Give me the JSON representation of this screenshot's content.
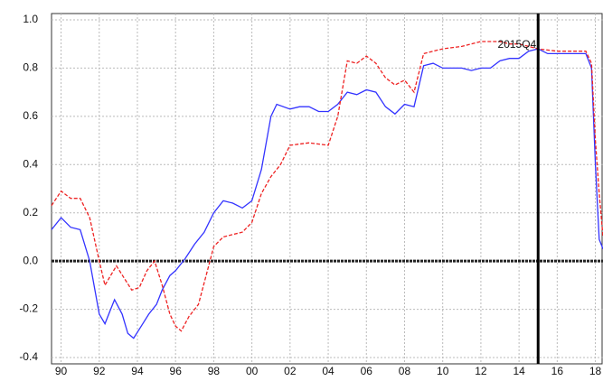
{
  "chart_data": {
    "type": "line",
    "x_blue": [
      1989.5,
      1990,
      1990.5,
      1991,
      1991.5,
      1992,
      1992.3,
      1992.6,
      1992.8,
      1993.2,
      1993.5,
      1993.8,
      1994.2,
      1994.6,
      1995,
      1995.3,
      1995.7,
      1996,
      1996.5,
      1997,
      1997.5,
      1998,
      1998.5,
      1999,
      1999.5,
      2000,
      2000.5,
      2001,
      2001.3,
      2002,
      2002.5,
      2003,
      2003.5,
      2004,
      2004.5,
      2005,
      2005.5,
      2006,
      2006.5,
      2007,
      2007.5,
      2008,
      2008.5,
      2009,
      2009.5,
      2010,
      2011,
      2011.5,
      2012,
      2012.5,
      2013,
      2013.5,
      2014,
      2014.5,
      2015,
      2015.5,
      2016,
      2017,
      2017.5,
      2017.8,
      2018,
      2018.2,
      2018.4
    ],
    "x_red": [
      1989.5,
      1990,
      1990.5,
      1991,
      1991.5,
      1992,
      1992.3,
      1992.6,
      1992.9,
      1993.3,
      1993.7,
      1994.1,
      1994.5,
      1994.9,
      1995.3,
      1995.7,
      1996,
      1996.3,
      1996.7,
      1997.2,
      1997.6,
      1998,
      1998.5,
      1999.5,
      2000,
      2000.5,
      2001,
      2001.5,
      2002,
      2003,
      2004,
      2004.5,
      2005,
      2005.5,
      2006,
      2006.5,
      2007,
      2007.5,
      2008,
      2008.5,
      2009,
      2009.5,
      2010,
      2011,
      2011.5,
      2012,
      2013,
      2013.5,
      2014,
      2015,
      2016,
      2017,
      2017.5,
      2017.8,
      2018,
      2018.2,
      2018.4
    ],
    "series": [
      {
        "color": "#3333ff",
        "style": "solid",
        "x_key": "x_blue",
        "values": [
          0.13,
          0.18,
          0.14,
          0.13,
          0.0,
          -0.22,
          -0.26,
          -0.2,
          -0.16,
          -0.22,
          -0.3,
          -0.32,
          -0.27,
          -0.22,
          -0.18,
          -0.12,
          -0.06,
          -0.04,
          0.01,
          0.07,
          0.12,
          0.2,
          0.25,
          0.24,
          0.22,
          0.25,
          0.38,
          0.6,
          0.65,
          0.63,
          0.64,
          0.64,
          0.62,
          0.62,
          0.65,
          0.7,
          0.69,
          0.71,
          0.7,
          0.64,
          0.61,
          0.65,
          0.64,
          0.81,
          0.82,
          0.8,
          0.8,
          0.79,
          0.8,
          0.8,
          0.83,
          0.84,
          0.84,
          0.87,
          0.88,
          0.86,
          0.86,
          0.86,
          0.86,
          0.8,
          0.4,
          0.09,
          0.05
        ]
      },
      {
        "color": "#ee2222",
        "style": "dashed",
        "x_key": "x_red",
        "values": [
          0.23,
          0.29,
          0.26,
          0.26,
          0.18,
          0.0,
          -0.1,
          -0.06,
          -0.02,
          -0.07,
          -0.12,
          -0.11,
          -0.04,
          0.0,
          -0.1,
          -0.22,
          -0.27,
          -0.29,
          -0.23,
          -0.18,
          -0.06,
          0.06,
          0.1,
          0.12,
          0.16,
          0.28,
          0.35,
          0.4,
          0.48,
          0.49,
          0.48,
          0.6,
          0.83,
          0.82,
          0.85,
          0.82,
          0.76,
          0.73,
          0.75,
          0.7,
          0.86,
          0.87,
          0.88,
          0.89,
          0.9,
          0.91,
          0.91,
          0.9,
          0.9,
          0.88,
          0.87,
          0.87,
          0.87,
          0.82,
          0.5,
          0.28,
          0.1
        ]
      }
    ],
    "xlim": [
      1989.5,
      2018.4
    ],
    "xticks": [
      {
        "value": 1990,
        "label": "90"
      },
      {
        "value": 1992,
        "label": "92"
      },
      {
        "value": 1994,
        "label": "94"
      },
      {
        "value": 1996,
        "label": "96"
      },
      {
        "value": 1998,
        "label": "98"
      },
      {
        "value": 2000,
        "label": "00"
      },
      {
        "value": 2002,
        "label": "02"
      },
      {
        "value": 2004,
        "label": "04"
      },
      {
        "value": 2006,
        "label": "06"
      },
      {
        "value": 2008,
        "label": "08"
      },
      {
        "value": 2010,
        "label": "10"
      },
      {
        "value": 2012,
        "label": "12"
      },
      {
        "value": 2014,
        "label": "14"
      },
      {
        "value": 2016,
        "label": "16"
      },
      {
        "value": 2018,
        "label": "18"
      }
    ],
    "ylim": [
      -0.4,
      1.0
    ],
    "yticks": [
      {
        "value": 1.0,
        "label": "1.0"
      },
      {
        "value": 0.8,
        "label": "0.8"
      },
      {
        "value": 0.6,
        "label": "0.6"
      },
      {
        "value": 0.4,
        "label": "0.4"
      },
      {
        "value": 0.2,
        "label": "0.2"
      },
      {
        "value": 0,
        "label": "0.0"
      },
      {
        "value": -0.2,
        "label": "-0.2"
      },
      {
        "value": -0.4,
        "label": "-0.4"
      }
    ],
    "grid": true,
    "vline": {
      "x": 2015.0,
      "label": "2015Q4"
    }
  }
}
